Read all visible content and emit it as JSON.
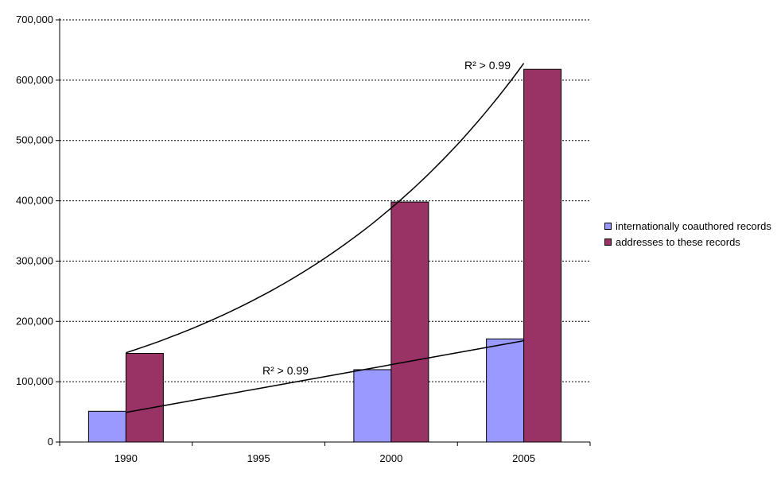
{
  "chart_data": {
    "type": "bar",
    "categories": [
      "1990",
      "1995",
      "2000",
      "2005"
    ],
    "series": [
      {
        "name": "internationally coauthored records",
        "color": "#9999ff",
        "values": [
          51000,
          null,
          120000,
          171000
        ]
      },
      {
        "name": "addresses to these records",
        "color": "#993366",
        "values": [
          147000,
          null,
          398000,
          618000
        ]
      }
    ],
    "trendlines": [
      {
        "series": "addresses to these records",
        "kind": "exponential",
        "from": [
          "1990",
          148000
        ],
        "to": [
          "2005",
          628000
        ],
        "label": "R² > 0.99"
      },
      {
        "series": "internationally coauthored records",
        "kind": "linear",
        "from": [
          "1990",
          49000
        ],
        "to": [
          "2005",
          168000
        ],
        "label": "R² > 0.99"
      }
    ],
    "ylim": [
      0,
      700000
    ],
    "yticks": [
      0,
      100000,
      200000,
      300000,
      400000,
      500000,
      600000,
      700000
    ],
    "ytick_labels": [
      "0",
      "100,000",
      "200,000",
      "300,000",
      "400,000",
      "500,000",
      "600,000",
      "700,000"
    ],
    "grid": "horizontal dashed",
    "legend_position": "right",
    "xlabel": "",
    "ylabel": "",
    "title": ""
  }
}
